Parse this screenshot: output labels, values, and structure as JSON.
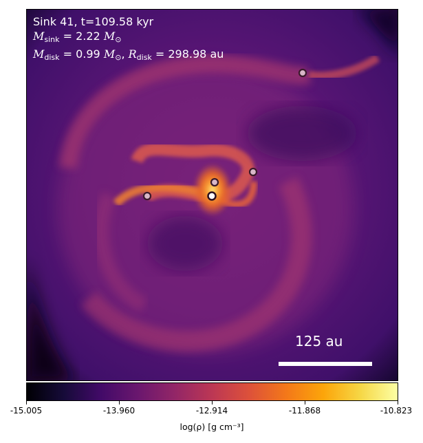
{
  "figure": {
    "title_line1": "Sink 41, t=109.58 kyr",
    "msink_symbol": "M",
    "msink_sub": "sink",
    "msink_value": " = 2.22 ",
    "msink_unit": "M",
    "msink_unit_sub": "⊙",
    "mdisk_symbol": "M",
    "mdisk_sub": "disk",
    "mdisk_value": " = 0.99 ",
    "mdisk_unit": "M",
    "mdisk_unit_sub": "⊙",
    "mdisk_sep": ", ",
    "rdisk_symbol": "R",
    "rdisk_sub": "disk",
    "rdisk_value": " = 298.98 au",
    "scalebar_label": "125 au"
  },
  "colorbar": {
    "ticks": [
      "-15.005",
      "-13.960",
      "-12.914",
      "-11.868",
      "-10.823"
    ],
    "label": "log(ρ) [g cm⁻³]",
    "colormap": "inferno"
  },
  "colors": {
    "disk_dark": "#3a0c5c",
    "disk_mid": "#8c2981",
    "spiral": "#dd5a4e",
    "hot": "#fca636",
    "sink_fill": "#d9b8c8",
    "sink_edge": "#3a1a2a"
  }
}
